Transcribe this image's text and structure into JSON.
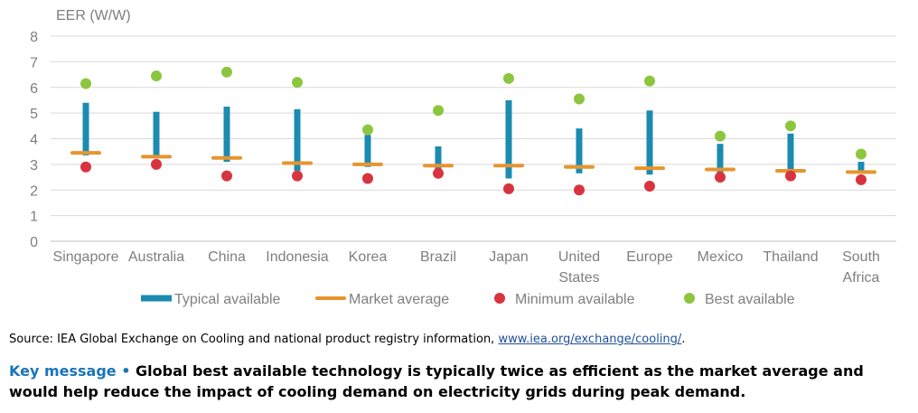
{
  "chart_data": {
    "type": "range",
    "ylabel": "EER (W/W)",
    "ylim": [
      0,
      8
    ],
    "yticks": [
      "0",
      "1",
      "2",
      "3",
      "4",
      "5",
      "6",
      "7",
      "8"
    ],
    "grid": true,
    "legend_position": "bottom",
    "categories": [
      [
        "Singapore"
      ],
      [
        "Australia"
      ],
      [
        "China"
      ],
      [
        "Indonesia"
      ],
      [
        "Korea"
      ],
      [
        "Brazil"
      ],
      [
        "Japan"
      ],
      [
        "United",
        "States"
      ],
      [
        "Europe"
      ],
      [
        "Mexico"
      ],
      [
        "Thailand"
      ],
      [
        "South",
        "Africa"
      ]
    ],
    "series": [
      {
        "name": "Typical available",
        "kind": "range",
        "color": "#1b8bb0",
        "low": [
          3.35,
          3.3,
          3.1,
          2.75,
          2.9,
          2.75,
          2.45,
          2.65,
          2.6,
          2.65,
          2.7,
          2.75
        ],
        "high": [
          5.4,
          5.05,
          5.25,
          5.15,
          4.15,
          3.7,
          5.5,
          4.4,
          5.1,
          3.8,
          4.2,
          3.1
        ]
      },
      {
        "name": "Market average",
        "kind": "dash",
        "color": "#e6952e",
        "values": [
          3.45,
          3.3,
          3.25,
          3.05,
          3.0,
          2.95,
          2.95,
          2.9,
          2.85,
          2.8,
          2.75,
          2.7
        ]
      },
      {
        "name": "Minimum available",
        "kind": "dot",
        "color": "#d8343f",
        "values": [
          2.9,
          3.0,
          2.55,
          2.55,
          2.45,
          2.65,
          2.05,
          2.0,
          2.15,
          2.5,
          2.55,
          2.4
        ]
      },
      {
        "name": "Best available",
        "kind": "dot",
        "color": "#8cc63f",
        "values": [
          6.15,
          6.45,
          6.6,
          6.2,
          4.35,
          5.1,
          6.35,
          5.55,
          6.25,
          4.1,
          4.5,
          3.4
        ]
      }
    ]
  },
  "source": {
    "text": "Source: IEA Global Exchange on Cooling and national product registry information, ",
    "link": "www.iea.org/exchange/cooling/",
    "end": "."
  },
  "key_message": {
    "label": "Key message",
    "bullet": "•",
    "text": "Global best available technology is typically twice as efficient as the market average and would help reduce the impact of cooling demand on electricity grids during peak demand."
  }
}
